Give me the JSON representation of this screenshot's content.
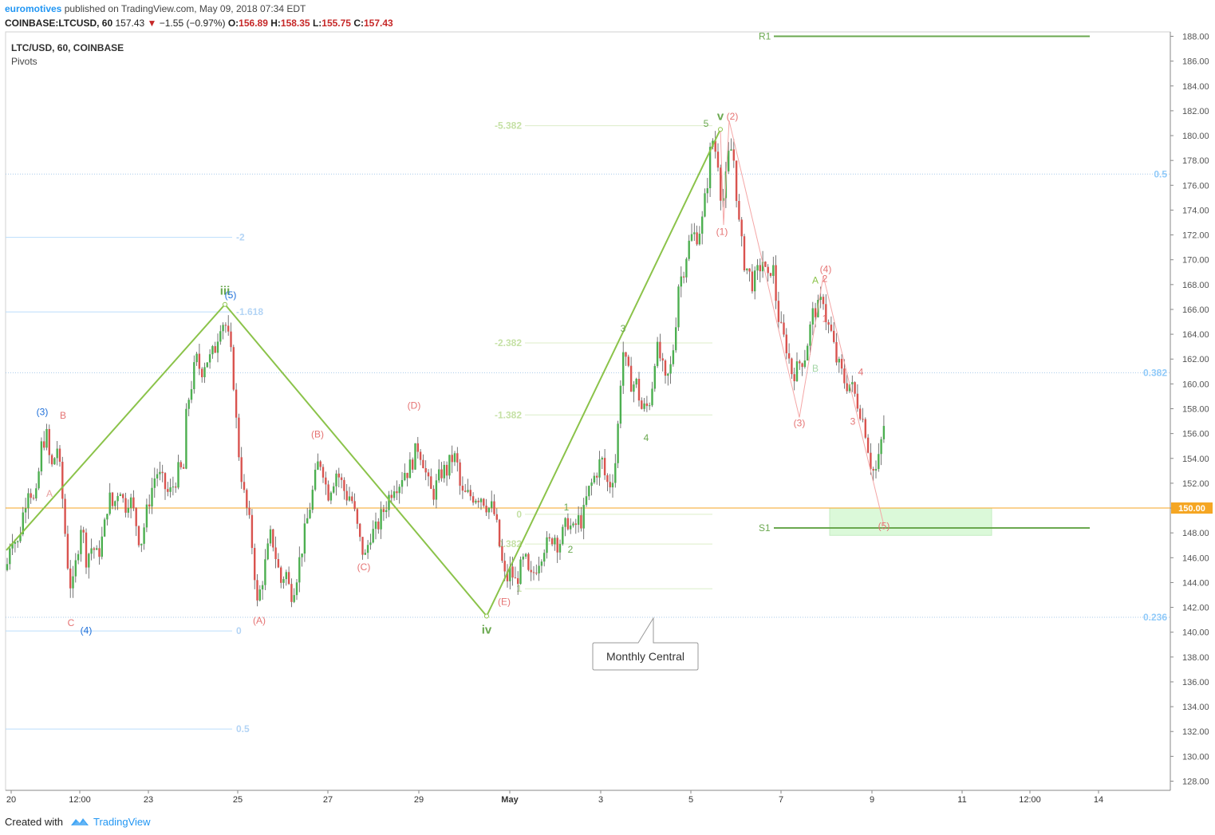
{
  "header": {
    "author": "euromotives",
    "published": "published on TradingView.com, May 09, 2018 07:34 EDT",
    "symbol": "COINBASE:LTCUSD, 60",
    "price": "157.43",
    "change_arrow": "▼",
    "change": "−1.55 (−0.97%)",
    "o_label": "O:",
    "o": "156.89",
    "h_label": "H:",
    "h": "158.35",
    "l_label": "L:",
    "l": "155.75",
    "c_label": "C:",
    "c": "157.43"
  },
  "legend": {
    "title": "LTC/USD, 60, COINBASE",
    "indicator": "Pivots"
  },
  "footer": {
    "created": "Created with",
    "brand": "TradingView",
    "logo_icon": "tradingview-cloud-icon"
  },
  "colors": {
    "up": "#4caf50",
    "down": "#d9534f",
    "wave": "#8bc34a",
    "fib_blue": "#90caf9",
    "fib_green": "#c5e1a5",
    "pivot": "#6aa84f",
    "label_red": "#e57373",
    "price_tag": "#f5a623"
  },
  "chart_data": {
    "type": "candlestick",
    "y_axis": {
      "min": 127,
      "max": 188.5,
      "ticks": [
        "188.00",
        "186.00",
        "184.00",
        "182.00",
        "180.00",
        "178.00",
        "176.00",
        "174.00",
        "172.00",
        "170.00",
        "168.00",
        "166.00",
        "164.00",
        "162.00",
        "160.00",
        "158.00",
        "156.00",
        "154.00",
        "152.00",
        "150.00",
        "148.00",
        "146.00",
        "144.00",
        "142.00",
        "140.00",
        "138.00",
        "136.00",
        "134.00",
        "132.00",
        "130.00",
        "128.00"
      ]
    },
    "x_axis": {
      "ticks": [
        "20",
        "12:00",
        "23",
        "25",
        "27",
        "29",
        "May",
        "3",
        "5",
        "7",
        "9",
        "11",
        "12:00",
        "14"
      ]
    },
    "price_tag": "150.00",
    "price_line": 150.0,
    "close_path": [
      [
        0,
        149
      ],
      [
        8,
        145
      ],
      [
        14,
        148
      ],
      [
        22,
        147
      ],
      [
        30,
        150
      ],
      [
        36,
        152
      ],
      [
        44,
        150
      ],
      [
        52,
        155
      ],
      [
        58,
        156
      ],
      [
        64,
        153
      ],
      [
        72,
        155
      ],
      [
        78,
        151
      ],
      [
        84,
        146
      ],
      [
        90,
        143
      ],
      [
        96,
        146
      ],
      [
        102,
        149
      ],
      [
        108,
        146
      ],
      [
        116,
        147
      ],
      [
        122,
        146
      ],
      [
        130,
        148
      ],
      [
        136,
        151
      ],
      [
        142,
        150
      ],
      [
        150,
        152
      ],
      [
        156,
        150
      ],
      [
        162,
        151
      ],
      [
        170,
        149
      ],
      [
        176,
        147
      ],
      [
        182,
        149
      ],
      [
        188,
        151
      ],
      [
        196,
        153
      ],
      [
        204,
        152
      ],
      [
        212,
        151
      ],
      [
        218,
        152
      ],
      [
        224,
        153
      ],
      [
        230,
        153
      ],
      [
        234,
        158
      ],
      [
        240,
        160
      ],
      [
        246,
        162
      ],
      [
        252,
        161
      ],
      [
        258,
        162
      ],
      [
        264,
        162
      ],
      [
        270,
        163
      ],
      [
        276,
        165
      ],
      [
        282,
        165
      ],
      [
        288,
        163
      ],
      [
        292,
        161
      ],
      [
        296,
        157
      ],
      [
        300,
        154
      ],
      [
        306,
        151
      ],
      [
        312,
        149
      ],
      [
        318,
        146
      ],
      [
        322,
        142
      ],
      [
        328,
        144
      ],
      [
        334,
        146
      ],
      [
        340,
        148
      ],
      [
        346,
        146
      ],
      [
        352,
        144
      ],
      [
        358,
        145
      ],
      [
        364,
        143
      ],
      [
        370,
        144
      ],
      [
        376,
        146
      ],
      [
        382,
        148
      ],
      [
        388,
        150
      ],
      [
        394,
        152
      ],
      [
        400,
        154
      ],
      [
        406,
        153
      ],
      [
        410,
        151
      ],
      [
        416,
        152
      ],
      [
        422,
        153
      ],
      [
        428,
        152
      ],
      [
        434,
        151
      ],
      [
        440,
        151
      ],
      [
        446,
        149
      ],
      [
        452,
        147
      ],
      [
        458,
        146
      ],
      [
        464,
        148
      ],
      [
        470,
        148
      ],
      [
        476,
        149
      ],
      [
        482,
        150
      ],
      [
        488,
        151
      ],
      [
        494,
        152
      ],
      [
        500,
        152
      ],
      [
        506,
        153
      ],
      [
        512,
        153
      ],
      [
        518,
        154
      ],
      [
        524,
        155
      ],
      [
        530,
        154
      ],
      [
        536,
        152
      ],
      [
        542,
        151
      ],
      [
        548,
        152
      ],
      [
        554,
        153
      ],
      [
        560,
        153
      ],
      [
        566,
        154
      ],
      [
        572,
        154
      ],
      [
        578,
        151
      ],
      [
        584,
        151
      ],
      [
        590,
        151
      ],
      [
        596,
        151
      ],
      [
        604,
        151
      ],
      [
        612,
        150
      ],
      [
        618,
        150
      ],
      [
        624,
        148
      ],
      [
        628,
        146
      ],
      [
        634,
        144
      ],
      [
        640,
        145
      ],
      [
        646,
        144
      ],
      [
        652,
        145
      ],
      [
        658,
        146
      ],
      [
        664,
        144
      ],
      [
        670,
        145
      ],
      [
        676,
        146
      ],
      [
        682,
        147
      ],
      [
        688,
        147
      ],
      [
        694,
        148
      ],
      [
        700,
        147
      ],
      [
        706,
        148
      ],
      [
        712,
        149
      ],
      [
        718,
        148
      ],
      [
        724,
        149
      ],
      [
        730,
        149
      ],
      [
        736,
        151
      ],
      [
        742,
        152
      ],
      [
        748,
        153
      ],
      [
        754,
        154
      ],
      [
        760,
        152
      ],
      [
        766,
        152
      ],
      [
        772,
        154
      ],
      [
        776,
        158
      ],
      [
        780,
        163
      ],
      [
        786,
        161
      ],
      [
        792,
        160
      ],
      [
        798,
        160
      ],
      [
        804,
        158
      ],
      [
        810,
        158
      ],
      [
        816,
        159
      ],
      [
        822,
        163
      ],
      [
        828,
        162
      ],
      [
        834,
        160
      ],
      [
        840,
        161
      ],
      [
        846,
        164
      ],
      [
        850,
        168
      ],
      [
        856,
        169
      ],
      [
        862,
        171
      ],
      [
        868,
        172
      ],
      [
        874,
        172
      ],
      [
        880,
        173
      ],
      [
        884,
        175
      ],
      [
        888,
        177
      ],
      [
        892,
        180
      ],
      [
        896,
        179
      ],
      [
        900,
        178
      ],
      [
        904,
        175
      ],
      [
        908,
        175
      ],
      [
        912,
        178
      ],
      [
        916,
        179
      ],
      [
        920,
        178
      ],
      [
        926,
        173
      ],
      [
        932,
        170
      ],
      [
        938,
        169
      ],
      [
        944,
        168
      ],
      [
        950,
        169
      ],
      [
        956,
        170
      ],
      [
        962,
        168
      ],
      [
        968,
        170
      ],
      [
        974,
        166
      ],
      [
        980,
        164
      ],
      [
        986,
        163
      ],
      [
        992,
        161
      ],
      [
        998,
        161
      ],
      [
        1004,
        162
      ],
      [
        1008,
        162
      ],
      [
        1014,
        164
      ],
      [
        1020,
        166
      ],
      [
        1026,
        166
      ],
      [
        1032,
        167
      ],
      [
        1036,
        165
      ],
      [
        1042,
        164
      ],
      [
        1048,
        162
      ],
      [
        1054,
        161
      ],
      [
        1060,
        160
      ],
      [
        1066,
        160
      ],
      [
        1072,
        159
      ],
      [
        1078,
        158
      ],
      [
        1082,
        157
      ],
      [
        1086,
        156
      ],
      [
        1090,
        154
      ],
      [
        1094,
        153
      ],
      [
        1098,
        153
      ],
      [
        1102,
        154
      ],
      [
        1106,
        156
      ],
      [
        1110,
        157.4
      ]
    ],
    "horizontal_levels": [
      {
        "label": "R1",
        "value": 188.0,
        "color": "#6aa84f"
      },
      {
        "label": "S1",
        "value": 148.4,
        "color": "#6aa84f"
      }
    ],
    "fib_left": [
      {
        "label": "-2",
        "value": 171.8
      },
      {
        "label": "-1.618",
        "value": 165.8
      },
      {
        "label": "0",
        "value": 140.1
      },
      {
        "label": "0.5",
        "value": 132.2
      }
    ],
    "fib_mid": [
      {
        "label": "-5.382",
        "value": 180.8
      },
      {
        "label": "-2.382",
        "value": 163.3
      },
      {
        "label": "-1.382",
        "value": 157.5
      },
      {
        "label": "0",
        "value": 149.5
      },
      {
        "label": "0.382",
        "value": 147.1
      },
      {
        "label": "1",
        "value": 143.5
      }
    ],
    "fib_right": [
      {
        "label": "0.5",
        "value": 176.9
      },
      {
        "label": "0.382",
        "value": 160.9
      },
      {
        "label": "0.236",
        "value": 141.2
      }
    ],
    "primary_waves": [
      {
        "label": "iii",
        "x": 282,
        "value": 166.4
      },
      {
        "label": "iv",
        "x": 610,
        "value": 141.3
      },
      {
        "label": "v",
        "x": 903,
        "value": 180.5
      }
    ],
    "primary_path": [
      [
        8,
        146.6
      ],
      [
        282,
        166.4
      ],
      [
        610,
        141.3
      ],
      [
        903,
        180.5
      ]
    ],
    "sub_wave_labels": [
      {
        "label": "(3)",
        "x": 53,
        "value": 157.5,
        "color": "#1e6fd9"
      },
      {
        "label": "B",
        "x": 79,
        "value": 157.2,
        "color": "#e57373"
      },
      {
        "label": "A",
        "x": 62,
        "value": 150.9,
        "color": "#e8a0a0"
      },
      {
        "label": "C",
        "x": 89,
        "value": 140.5,
        "color": "#e57373"
      },
      {
        "label": "(4)",
        "x": 108,
        "value": 139.9,
        "color": "#1e6fd9"
      },
      {
        "label": "(5)",
        "x": 289,
        "value": 166.9,
        "color": "#1e6fd9"
      },
      {
        "label": "(A)",
        "x": 325,
        "value": 140.7,
        "color": "#e57373"
      },
      {
        "label": "(B)",
        "x": 398,
        "value": 155.7,
        "color": "#e57373"
      },
      {
        "label": "(C)",
        "x": 456,
        "value": 145.0,
        "color": "#e57373"
      },
      {
        "label": "(D)",
        "x": 519,
        "value": 158.0,
        "color": "#e57373"
      },
      {
        "label": "(E)",
        "x": 632,
        "value": 142.2,
        "color": "#e57373"
      },
      {
        "label": "1",
        "x": 710,
        "value": 149.8,
        "color": "#6aa84f"
      },
      {
        "label": "2",
        "x": 715,
        "value": 146.4,
        "color": "#6aa84f"
      },
      {
        "label": "3",
        "x": 781,
        "value": 164.2,
        "color": "#6aa84f"
      },
      {
        "label": "4",
        "x": 810,
        "value": 155.4,
        "color": "#6aa84f"
      },
      {
        "label": "5",
        "x": 885,
        "value": 180.7,
        "color": "#6aa84f"
      },
      {
        "label": "(2)",
        "x": 918,
        "value": 181.3,
        "color": "#e57373"
      },
      {
        "label": "(1)",
        "x": 905,
        "value": 172.0,
        "color": "#e57373"
      },
      {
        "label": "(3)",
        "x": 1002,
        "value": 156.6,
        "color": "#e57373"
      },
      {
        "label": "(4)",
        "x": 1035,
        "value": 169.0,
        "color": "#e57373"
      },
      {
        "label": "A",
        "x": 1022,
        "value": 168.1,
        "color": "#8bc34a"
      },
      {
        "label": "2",
        "x": 1034,
        "value": 168.2,
        "color": "#e57373"
      },
      {
        "label": "B",
        "x": 1022,
        "value": 161.0,
        "color": "#a5d6a7"
      },
      {
        "label": "1",
        "x": 1034,
        "value": 165.0,
        "color": "#e57373"
      },
      {
        "label": "4",
        "x": 1079,
        "value": 160.7,
        "color": "#e57373"
      },
      {
        "label": "3",
        "x": 1069,
        "value": 156.7,
        "color": "#e57373"
      },
      {
        "label": "(5)",
        "x": 1108,
        "value": 148.3,
        "color": "#e57373"
      }
    ],
    "red_path": [
      [
        903,
        180.5
      ],
      [
        907,
        172.8
      ],
      [
        914,
        181.2
      ],
      [
        1002,
        157.3
      ],
      [
        1032,
        168.7
      ],
      [
        1108,
        148.6
      ]
    ],
    "target_zone": {
      "x1": 1040,
      "x2": 1243,
      "top": 150.0,
      "bottom": 147.8
    },
    "callout": {
      "text": "Monthly Central",
      "value": 141.2
    }
  }
}
